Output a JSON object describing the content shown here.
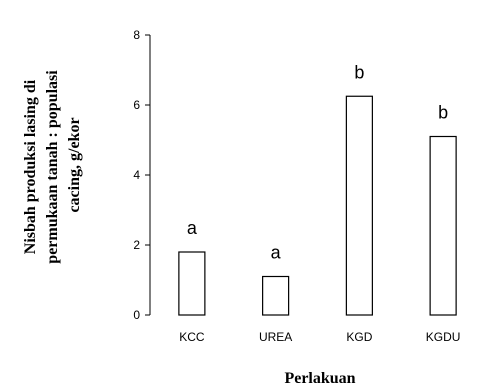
{
  "chart_data": {
    "type": "bar",
    "categories": [
      "KCC",
      "UREA",
      "KGD",
      "KGDU"
    ],
    "values": [
      1.8,
      1.1,
      6.25,
      5.1
    ],
    "significance_labels": [
      "a",
      "a",
      "b",
      "b"
    ],
    "title": "",
    "xlabel": "Perlakuan",
    "ylabel_lines": [
      "Nisbah produksi lasing di",
      "permukaan tanah : populasi",
      "cacing, g/ekor"
    ],
    "ylim": [
      0,
      8
    ],
    "yticks": [
      0,
      2,
      4,
      6,
      8
    ],
    "grid": false,
    "legend": "none",
    "bar_fill": "#ffffff",
    "bar_stroke": "#000000"
  }
}
